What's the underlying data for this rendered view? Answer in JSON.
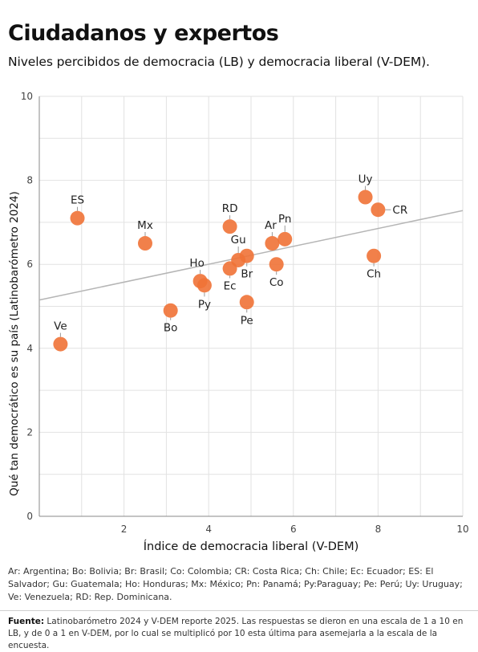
{
  "title": "Ciudadanos y expertos",
  "subtitle": "Niveles percibidos de democracia (LB) y democracia liberal (V-DEM).",
  "legend_text": "Ar: Argentina; Bo: Bolivia; Br: Brasil; Co: Colombia; CR: Costa Rica; Ch: Chile; Ec: Ecuador; ES: El Salvador; Gu: Guatemala; Ho: Honduras; Mx: México; Pn: Panamá; Py:Paraguay; Pe: Perú; Uy: Uruguay; Ve: Venezuela; RD: Rep. Dominicana.",
  "source": {
    "label": "Fuente:",
    "text": "Latinobarómetro 2024 y V-DEM reporte 2025. Las respuestas se dieron en una escala de 1 a 10 en LB, y de 0 a 1 en V-DEM, por lo cual se multiplicó por 10 esta última para asemejarla a la escala de la encuesta."
  },
  "colors": {
    "point": "#f07236",
    "trend": "#b5b5b5",
    "grid": "#e2e2e2",
    "axis": "#888888"
  },
  "chart_data": {
    "type": "scatter",
    "xlabel": "Índice de democracia liberal (V-DEM)",
    "ylabel": "Qué tan democrático es su país (Latinobarómetro 2024)",
    "xlim": [
      0,
      10
    ],
    "ylim": [
      0,
      10
    ],
    "xticks": [
      2,
      4,
      6,
      8,
      10
    ],
    "yticks": [
      0,
      2,
      4,
      6,
      8,
      10
    ],
    "grid": true,
    "points": [
      {
        "label": "Ve",
        "x": 0.5,
        "y": 4.1
      },
      {
        "label": "ES",
        "x": 0.9,
        "y": 7.1
      },
      {
        "label": "Mx",
        "x": 2.5,
        "y": 6.5
      },
      {
        "label": "Bo",
        "x": 3.1,
        "y": 4.9
      },
      {
        "label": "Ho",
        "x": 3.8,
        "y": 5.6
      },
      {
        "label": "Py",
        "x": 3.9,
        "y": 5.5
      },
      {
        "label": "RD",
        "x": 4.5,
        "y": 6.9
      },
      {
        "label": "Ec",
        "x": 4.5,
        "y": 5.9
      },
      {
        "label": "Gu",
        "x": 4.7,
        "y": 6.1
      },
      {
        "label": "Br",
        "x": 4.9,
        "y": 6.2
      },
      {
        "label": "Pe",
        "x": 4.9,
        "y": 5.1
      },
      {
        "label": "Ar",
        "x": 5.5,
        "y": 6.5
      },
      {
        "label": "Co",
        "x": 5.6,
        "y": 6.0
      },
      {
        "label": "Pn",
        "x": 5.8,
        "y": 6.6
      },
      {
        "label": "Uy",
        "x": 7.7,
        "y": 7.6
      },
      {
        "label": "CR",
        "x": 8.0,
        "y": 7.3
      },
      {
        "label": "Ch",
        "x": 7.9,
        "y": 6.2
      }
    ],
    "trendline": {
      "x": [
        0,
        10
      ],
      "y": [
        5.15,
        7.28
      ]
    }
  }
}
